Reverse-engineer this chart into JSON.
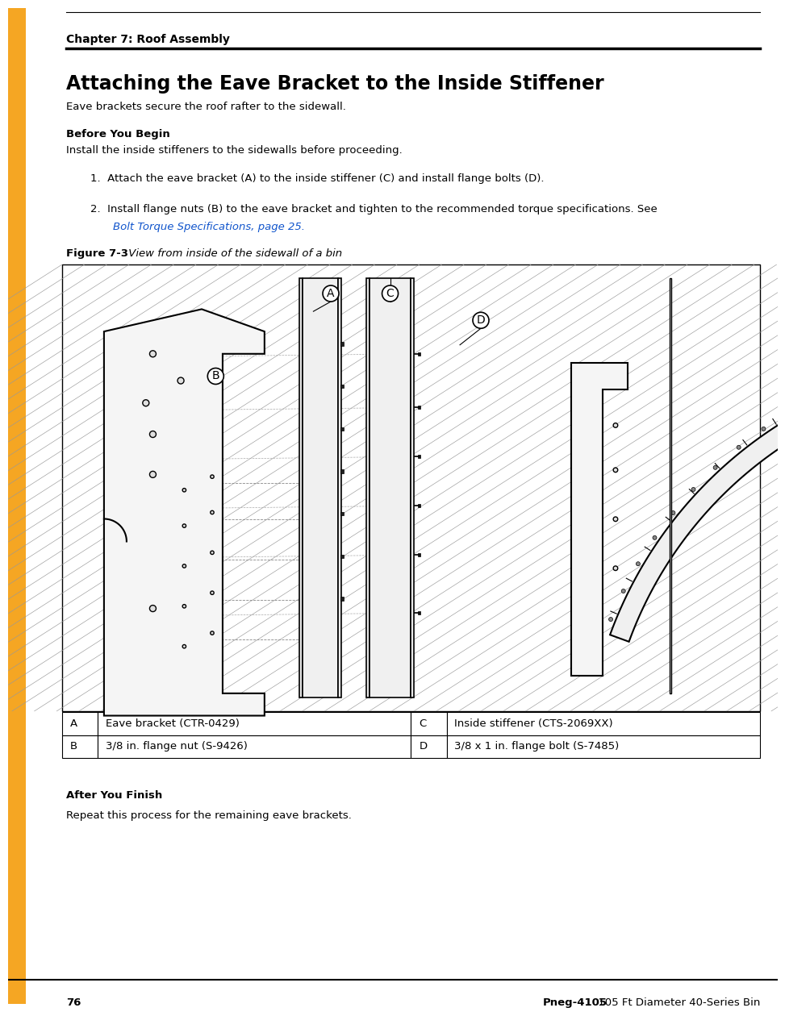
{
  "page_width": 9.54,
  "page_height": 12.35,
  "bg_color": "#ffffff",
  "orange_color": "#F5A623",
  "black": "#000000",
  "link_color": "#1155CC",
  "chapter_text": "Chapter 7: Roof Assembly",
  "title_text": "Attaching the Eave Bracket to the Inside Stiffener",
  "subtitle_text": "Eave brackets secure the roof rafter to the sidewall.",
  "before_header": "Before You Begin",
  "before_body": "Install the inside stiffeners to the sidewalls before proceeding.",
  "step1": "Attach the eave bracket (A) to the inside stiffener (C) and install flange bolts (D).",
  "step2_main": "Install flange nuts (B) to the eave bracket and tighten to the recommended torque specifications. See",
  "step2_link": "Bolt Torque Specifications, page 25.",
  "figure_bold": "Figure 7-3",
  "figure_italic": " View from inside of the sidewall of a bin",
  "after_header": "After You Finish",
  "after_body": "Repeat this process for the remaining eave brackets.",
  "page_number": "76",
  "footer_bold": "Pneg-4105",
  "footer_rest": " 105 Ft Diameter 40-Series Bin",
  "table": [
    [
      "A",
      "Eave bracket (CTR-0429)",
      "C",
      "Inside stiffener (CTS-2069XX)"
    ],
    [
      "B",
      "3/8 in. flange nut (S-9426)",
      "D",
      "3/8 x 1 in. flange bolt (S-7485)"
    ]
  ]
}
